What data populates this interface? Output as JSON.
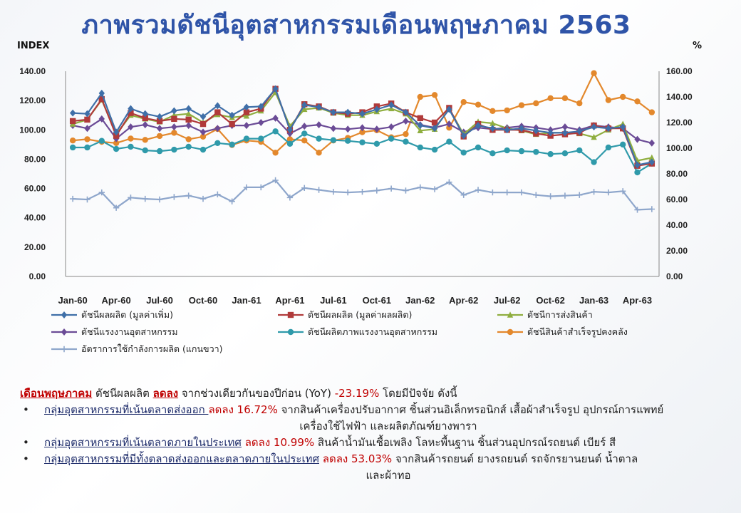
{
  "title": "ภาพรวมดัชนีอุตสาหกรรมเดือนพฤษภาคม  2563",
  "left_unit": "INDEX",
  "right_unit": "%",
  "chart_data": {
    "type": "line",
    "x": [
      "Jan-60",
      "Feb-60",
      "Mar-60",
      "Apr-60",
      "May-60",
      "Jun-60",
      "Jul-60",
      "Aug-60",
      "Sep-60",
      "Oct-60",
      "Nov-60",
      "Dec-60",
      "Jan-61",
      "Feb-61",
      "Mar-61",
      "Apr-61",
      "May-61",
      "Jun-61",
      "Jul-61",
      "Aug-61",
      "Sep-61",
      "Oct-61",
      "Nov-61",
      "Dec-61",
      "Jan-62",
      "Feb-62",
      "Mar-62",
      "Apr-62",
      "May-62",
      "Jun-62",
      "Jul-62",
      "Aug-62",
      "Sep-62",
      "Oct-62",
      "Nov-62",
      "Dec-62",
      "Jan-63",
      "Feb-63",
      "Mar-63",
      "Apr-63",
      "May-63"
    ],
    "x_tick_labels": [
      "Jan-60",
      "Apr-60",
      "Jul-60",
      "Oct-60",
      "Jan-61",
      "Apr-61",
      "Jul-61",
      "Oct-61",
      "Jan-62",
      "Apr-62",
      "Jul-62",
      "Oct-62",
      "Jan-63",
      "Apr-63"
    ],
    "y_left_ticks": [
      "0.00",
      "20.00",
      "40.00",
      "60.00",
      "80.00",
      "100.00",
      "120.00",
      "140.00"
    ],
    "y_right_ticks": [
      "0.00",
      "20.00",
      "40.00",
      "60.00",
      "80.00",
      "100.00",
      "120.00",
      "140.00",
      "160.00"
    ],
    "ylim_left": [
      0,
      140
    ],
    "ylim_right": [
      0,
      160
    ],
    "grid": false,
    "series": [
      {
        "name": "ดัชนีผลผลิต (มูลค่าเพิ่ม)",
        "axis": "left",
        "color": "#3f6fa8",
        "marker": "diamond",
        "values": [
          111.5,
          111,
          125,
          98.5,
          114.5,
          111,
          109,
          113,
          114.5,
          109,
          116.5,
          110,
          115.5,
          116,
          128,
          100,
          117,
          115.5,
          112,
          112,
          111,
          114,
          117,
          112,
          103,
          101,
          114,
          96,
          103,
          101,
          100,
          101,
          99.5,
          98,
          98,
          99,
          102,
          101,
          102,
          76,
          78
        ]
      },
      {
        "name": "ดัชนีผลผลิต (มูลค่าผลผลิต)",
        "axis": "left",
        "color": "#b03a3a",
        "marker": "square",
        "values": [
          106,
          107,
          121,
          96,
          111.5,
          108,
          106,
          107.5,
          107,
          104,
          112,
          104,
          112,
          114.5,
          128,
          100,
          117.5,
          116,
          112,
          111,
          112,
          116,
          118,
          112,
          108,
          105,
          115,
          95.5,
          104,
          100,
          100,
          100,
          97.5,
          96,
          97,
          98,
          103,
          101,
          101,
          75.5,
          77
        ]
      },
      {
        "name": "ดัชนีการส่งสินค้า",
        "axis": "left",
        "color": "#8fae3f",
        "marker": "triangle",
        "values": [
          104,
          107,
          120.5,
          97,
          110,
          107.5,
          105.5,
          110,
          111,
          105,
          110.5,
          108.5,
          109.5,
          113,
          125.5,
          102.5,
          114,
          115,
          111.5,
          110,
          110,
          112.5,
          114.5,
          111,
          99.5,
          100.5,
          114.5,
          97,
          105.5,
          104.5,
          101,
          99.5,
          97,
          98,
          98,
          97.5,
          95,
          100,
          104,
          79,
          81
        ]
      },
      {
        "name": "ดัชนีแรงงานอุตสาหกรรม",
        "axis": "left",
        "color": "#6b4b96",
        "marker": "diamond",
        "values": [
          103,
          101,
          107.5,
          94,
          102,
          103.5,
          101,
          102,
          103,
          98.5,
          101,
          103,
          103,
          105,
          108,
          97.5,
          102.5,
          103.5,
          101,
          100.5,
          101.5,
          100.5,
          102,
          106,
          103.5,
          101.5,
          104,
          98.5,
          101.5,
          100.5,
          101.5,
          102.5,
          101.5,
          100,
          102,
          100,
          103,
          102,
          101,
          93.5,
          91
        ]
      },
      {
        "name": "ดัชนีผลิตภาพแรงงานอุตสาหกรรม",
        "axis": "left",
        "color": "#2f9aaa",
        "marker": "circle",
        "values": [
          88,
          88,
          92.5,
          87,
          88.5,
          86,
          85.5,
          86.5,
          88.5,
          86.5,
          91,
          90,
          94,
          94,
          99,
          90.5,
          97.5,
          94,
          93,
          92.5,
          91.5,
          90.5,
          94,
          92,
          88,
          86.5,
          92,
          84.5,
          88,
          84,
          86,
          85.5,
          85,
          83.5,
          84,
          86,
          78,
          88,
          90,
          71,
          77
        ]
      },
      {
        "name": "ดัชนีสินค้าสำเร็จรูปคงคลัง",
        "axis": "right",
        "color": "#e3882c",
        "marker": "circle",
        "values": [
          106,
          107,
          105,
          104,
          107.5,
          106.5,
          109.5,
          112,
          107,
          109,
          115,
          102.5,
          106,
          105,
          96.5,
          107,
          106,
          96.5,
          106,
          108,
          112.5,
          114,
          108.5,
          111,
          140,
          141.5,
          116,
          136,
          134,
          129,
          129.5,
          133.5,
          135,
          139,
          139,
          135,
          158.5,
          137.5,
          140,
          136.5,
          128
        ]
      },
      {
        "name": "อัตราการใช้กำลังการผลิต (แกนขวา)",
        "axis": "right",
        "color": "#8ea6cb",
        "marker": "plus",
        "values": [
          60.5,
          60,
          65.5,
          53.5,
          61.5,
          60.5,
          60,
          62,
          63,
          60.5,
          64,
          58.5,
          69.5,
          69.5,
          75,
          61.5,
          69,
          67.5,
          66,
          65.5,
          66,
          67,
          68.5,
          67,
          69.5,
          68,
          73.5,
          63.5,
          67.5,
          65.5,
          65.5,
          65.5,
          63.5,
          62.5,
          63,
          63.5,
          66,
          65.5,
          66.5,
          52,
          52.5
        ]
      }
    ]
  },
  "summary": {
    "l1_month": "เดือนพฤษภาคม",
    "l1_a": " ดัชนีผลผลิต ",
    "l1_down": "ลดลง",
    "l1_b": " จากช่วงเดียวกันของปีก่อน (YoY) ",
    "l1_val": "-23.19%",
    "l1_c": " โดยมีปัจจัย ดังนี้",
    "bullet": "•",
    "b1_group": "กลุ่มอุตสาหกรรมที่เน้นตลาดส่งออก ",
    "b1_val": "ลดลง 16.72%",
    "b1_text": " จากสินค้าเครื่องปรับอากาศ ชิ้นส่วนอิเล็กทรอนิกส์ เสื้อผ้าสำเร็จรูป อุปกรณ์การแพทย์",
    "b1_cont": "เครื่องใช้ไฟฟ้า และผลิตภัณฑ์ยางพารา",
    "b2_group": "กลุ่มอุตสาหกรรมที่เน้นตลาดภายในประเทศ",
    "b2_val": " ลดลง 10.99%",
    "b2_text": " สินค้าน้ำมันเชื้อเพลิง โลหะพื้นฐาน ชิ้นส่วนอุปกรณ์รถยนต์ เบียร์ สี",
    "b3_group": "กลุ่มอุตสาหกรรมที่มีทั้งตลาดส่งออกและตลาดภายในประเทศ",
    "b3_val": " ลดลง 53.03%",
    "b3_text": " จากสินค้ารถยนต์ ยางรถยนต์ รถจักรยานยนต์ น้ำตาล",
    "b3_cont": "และผ้าทอ"
  }
}
